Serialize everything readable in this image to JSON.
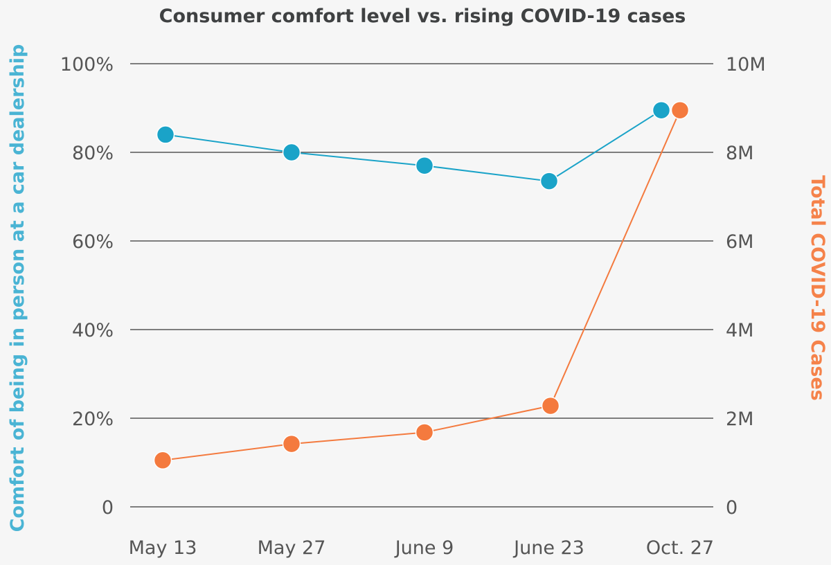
{
  "chart_data": {
    "type": "line",
    "title": "Consumer comfort level vs. rising COVID-19 cases",
    "x": [
      "May 13",
      "May 27",
      "June 9",
      "June 23",
      "Oct. 27"
    ],
    "ylabel_left": "Comfort of being in person at a car dealership",
    "ylabel_right": "Total COVID-19 Cases",
    "y_left": {
      "min": 0,
      "max": 100,
      "ticks": [
        0,
        20,
        40,
        60,
        80,
        100
      ],
      "tick_labels": [
        "0",
        "20%",
        "40%",
        "60%",
        "80%",
        "100%"
      ]
    },
    "y_right": {
      "min": 0,
      "max": 10000000,
      "ticks": [
        0,
        2000000,
        4000000,
        6000000,
        8000000,
        10000000
      ],
      "tick_labels": [
        "0",
        "2M",
        "4M",
        "6M",
        "8M",
        "10M"
      ]
    },
    "grid": true,
    "series": [
      {
        "axis": "left",
        "color": "#1aa3c8",
        "values": [
          84,
          80,
          77,
          73.5,
          89.5
        ]
      },
      {
        "axis": "right",
        "color": "#f47a3e",
        "values": [
          1050000,
          1420000,
          1680000,
          2280000,
          8950000
        ]
      }
    ]
  }
}
